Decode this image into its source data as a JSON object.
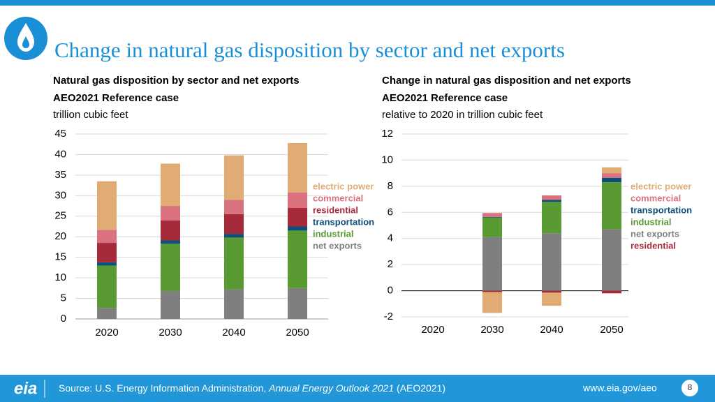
{
  "header": {
    "title": "Change in natural gas disposition by sector and net exports"
  },
  "chart_data": [
    {
      "type": "stacked_bar",
      "title": "Natural gas disposition by sector and net exports",
      "subtitle": "AEO2021 Reference case",
      "unit": "trillion cubic feet",
      "categories": [
        "2020",
        "2030",
        "2040",
        "2050"
      ],
      "ylim": [
        0,
        45
      ],
      "yticks": [
        0,
        5,
        10,
        15,
        20,
        25,
        30,
        35,
        40,
        45
      ],
      "grid": true,
      "series": [
        {
          "name": "electric power",
          "color": "#e0ac73",
          "values": [
            11.8,
            10.3,
            10.8,
            12.0
          ]
        },
        {
          "name": "commercial",
          "color": "#d9727e",
          "values": [
            3.2,
            3.5,
            3.5,
            3.8
          ]
        },
        {
          "name": "residential",
          "color": "#a52a3a",
          "values": [
            4.7,
            4.9,
            4.8,
            4.5
          ]
        },
        {
          "name": "transportation",
          "color": "#0e4f7a",
          "values": [
            0.8,
            0.8,
            0.9,
            1.0
          ]
        },
        {
          "name": "industrial",
          "color": "#5a9a32",
          "values": [
            10.3,
            11.5,
            12.6,
            14.0
          ]
        },
        {
          "name": "net exports",
          "color": "#7f7f7f",
          "values": [
            2.7,
            6.8,
            7.2,
            7.5
          ]
        }
      ]
    },
    {
      "type": "stacked_bar",
      "title": "Change in natural gas disposition and net exports",
      "subtitle": "AEO2021 Reference case",
      "unit": "relative to 2020 in trillion cubic feet",
      "categories": [
        "2020",
        "2030",
        "2040",
        "2050"
      ],
      "ylim": [
        -2,
        12
      ],
      "yticks": [
        -2,
        0,
        2,
        4,
        6,
        8,
        10,
        12
      ],
      "grid": true,
      "series": [
        {
          "name": "electric power",
          "color": "#e0ac73",
          "values": [
            0,
            -1.6,
            -1.0,
            0.45
          ]
        },
        {
          "name": "commercial",
          "color": "#d9727e",
          "values": [
            0,
            0.3,
            0.35,
            0.35
          ]
        },
        {
          "name": "transportation",
          "color": "#0e4f7a",
          "values": [
            0,
            0.05,
            0.15,
            0.35
          ]
        },
        {
          "name": "industrial",
          "color": "#5a9a32",
          "values": [
            0,
            1.5,
            2.4,
            3.6
          ]
        },
        {
          "name": "net exports",
          "color": "#7f7f7f",
          "values": [
            0,
            4.1,
            4.4,
            4.7
          ]
        },
        {
          "name": "residential",
          "color": "#a52a3a",
          "values": [
            0,
            -0.1,
            -0.15,
            -0.2
          ]
        }
      ]
    }
  ],
  "footer": {
    "logo": "eia",
    "source_prefix": "Source: U.S. Energy Information Administration,",
    "source_title": "Annual Energy Outlook 2021",
    "source_suffix": "(AEO2021)",
    "url": "www.eia.gov/aeo",
    "page": "8"
  }
}
